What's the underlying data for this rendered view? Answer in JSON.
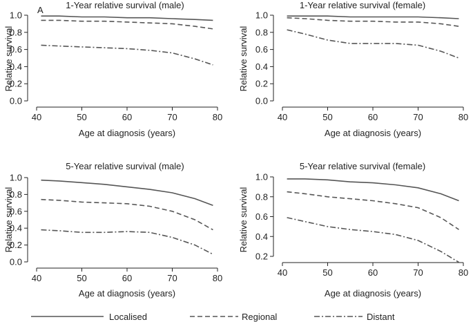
{
  "figure": {
    "panel_letter": "A",
    "line_color": "#555555",
    "axis_color": "#222222"
  },
  "legend": {
    "position": "bottom",
    "items": [
      {
        "label": "Localised",
        "style": "solid"
      },
      {
        "label": "Regional",
        "style": "dashed"
      },
      {
        "label": "Distant",
        "style": "dashdot"
      }
    ]
  },
  "chart_data": [
    {
      "type": "line",
      "title": "1-Year relative survival (male)",
      "xlabel": "Age at diagnosis (years)",
      "ylabel": "Relative survival",
      "xlim": [
        40,
        80
      ],
      "ylim": [
        0.0,
        1.0
      ],
      "xticks": [
        40,
        50,
        60,
        70,
        80
      ],
      "yticks": [
        0.0,
        0.2,
        0.4,
        0.6,
        0.8,
        1.0
      ],
      "grid": false,
      "x": [
        41,
        45,
        50,
        55,
        60,
        65,
        70,
        75,
        79
      ],
      "series": [
        {
          "name": "Localised",
          "style": "solid",
          "values": [
            0.99,
            0.99,
            0.98,
            0.98,
            0.97,
            0.97,
            0.96,
            0.95,
            0.94
          ]
        },
        {
          "name": "Regional",
          "style": "dashed",
          "values": [
            0.94,
            0.94,
            0.93,
            0.93,
            0.92,
            0.91,
            0.9,
            0.87,
            0.84
          ]
        },
        {
          "name": "Distant",
          "style": "dashdot",
          "values": [
            0.65,
            0.64,
            0.63,
            0.62,
            0.61,
            0.59,
            0.56,
            0.49,
            0.42
          ]
        }
      ]
    },
    {
      "type": "line",
      "title": "1-Year relative survival (female)",
      "xlabel": "Age at diagnosis (years)",
      "ylabel": "Relative survival",
      "xlim": [
        40,
        80
      ],
      "ylim": [
        0.0,
        1.0
      ],
      "xticks": [
        40,
        50,
        60,
        70,
        80
      ],
      "yticks": [
        0.0,
        0.2,
        0.4,
        0.6,
        0.8,
        1.0
      ],
      "grid": false,
      "x": [
        41,
        45,
        50,
        55,
        60,
        65,
        70,
        75,
        79
      ],
      "series": [
        {
          "name": "Localised",
          "style": "solid",
          "values": [
            0.99,
            0.99,
            0.99,
            0.98,
            0.98,
            0.98,
            0.98,
            0.97,
            0.96
          ]
        },
        {
          "name": "Regional",
          "style": "dashed",
          "values": [
            0.97,
            0.96,
            0.94,
            0.93,
            0.93,
            0.92,
            0.92,
            0.9,
            0.87
          ]
        },
        {
          "name": "Distant",
          "style": "dashdot",
          "values": [
            0.83,
            0.78,
            0.71,
            0.67,
            0.67,
            0.67,
            0.65,
            0.58,
            0.5
          ]
        }
      ]
    },
    {
      "type": "line",
      "title": "5-Year relative survival (male)",
      "xlabel": "Age at diagnosis (years)",
      "ylabel": "Relative survival",
      "xlim": [
        40,
        80
      ],
      "ylim": [
        0.0,
        1.0
      ],
      "xticks": [
        40,
        50,
        60,
        70,
        80
      ],
      "yticks": [
        0.0,
        0.2,
        0.4,
        0.6,
        0.8,
        1.0
      ],
      "grid": false,
      "x": [
        41,
        45,
        50,
        55,
        60,
        65,
        70,
        75,
        79
      ],
      "series": [
        {
          "name": "Localised",
          "style": "solid",
          "values": [
            0.97,
            0.96,
            0.94,
            0.92,
            0.89,
            0.86,
            0.82,
            0.75,
            0.67
          ]
        },
        {
          "name": "Regional",
          "style": "dashed",
          "values": [
            0.74,
            0.73,
            0.71,
            0.7,
            0.69,
            0.66,
            0.6,
            0.5,
            0.38
          ]
        },
        {
          "name": "Distant",
          "style": "dashdot",
          "values": [
            0.38,
            0.37,
            0.35,
            0.35,
            0.36,
            0.35,
            0.29,
            0.2,
            0.09
          ]
        }
      ]
    },
    {
      "type": "line",
      "title": "5-Year relative survival (female)",
      "xlabel": "Age at diagnosis (years)",
      "ylabel": "Relative survival",
      "xlim": [
        40,
        80
      ],
      "ylim": [
        0.2,
        1.0
      ],
      "xticks": [
        40,
        50,
        60,
        70,
        80
      ],
      "yticks": [
        0.2,
        0.4,
        0.6,
        0.8,
        1.0
      ],
      "grid": false,
      "x": [
        41,
        45,
        50,
        55,
        60,
        65,
        70,
        75,
        79
      ],
      "series": [
        {
          "name": "Localised",
          "style": "solid",
          "values": [
            0.98,
            0.98,
            0.97,
            0.95,
            0.94,
            0.92,
            0.89,
            0.83,
            0.76
          ]
        },
        {
          "name": "Regional",
          "style": "dashed",
          "values": [
            0.85,
            0.83,
            0.8,
            0.78,
            0.76,
            0.73,
            0.69,
            0.59,
            0.47
          ]
        },
        {
          "name": "Distant",
          "style": "dashdot",
          "values": [
            0.59,
            0.55,
            0.5,
            0.47,
            0.45,
            0.42,
            0.36,
            0.25,
            0.14
          ]
        }
      ]
    }
  ]
}
